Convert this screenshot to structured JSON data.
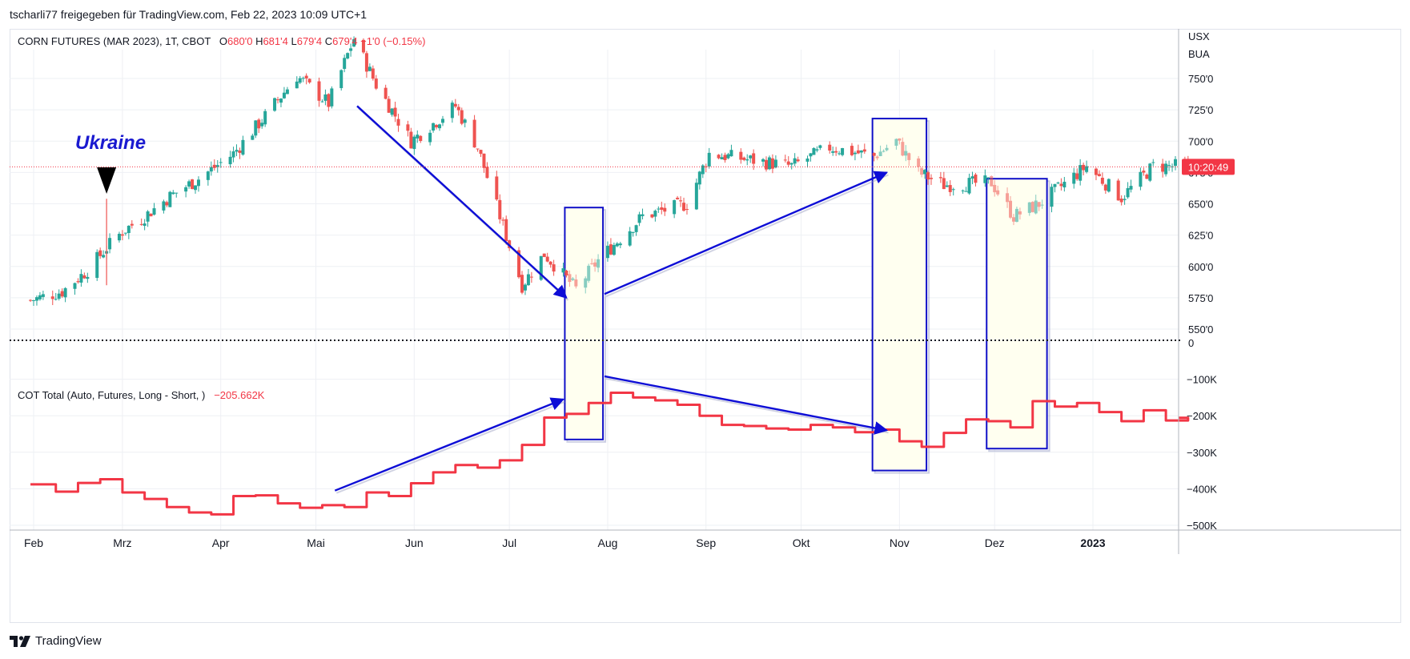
{
  "header": {
    "publisher_line": "tscharli77 freigegeben für TradingView.com, Feb 22, 2023 10:09 UTC+1"
  },
  "main_legend": {
    "symbol": "CORN FUTURES (MAR 2023), 1T, CBOT",
    "o_label": "O",
    "o_value": "680'0",
    "h_label": "H",
    "h_value": "681'4",
    "l_label": "L",
    "l_value": "679'4",
    "c_label": "C",
    "c_value": "679'4",
    "change": "−1'0 (−0.15%)"
  },
  "cot_legend": {
    "name": "COT Total (Auto, Futures, Long - Short, )",
    "value": "−205.662K"
  },
  "price_axis": {
    "currency": "USX",
    "unit": "BUA",
    "last_price_time": "10:20:49",
    "ticks": [
      "750'0",
      "725'0",
      "700'0",
      "675'0",
      "650'0",
      "625'0",
      "600'0",
      "575'0",
      "550'0"
    ]
  },
  "cot_axis": {
    "ticks": [
      "0",
      "−100K",
      "−200K",
      "−300K",
      "−400K",
      "−500K"
    ]
  },
  "time_axis": [
    "Feb",
    "Mrz",
    "Apr",
    "Mai",
    "Jun",
    "Jul",
    "Aug",
    "Sep",
    "Okt",
    "Nov",
    "Dez",
    "2023"
  ],
  "annotation": {
    "ukraine_label": "Ukraine"
  },
  "footer": {
    "brand": "TradingView"
  },
  "colors": {
    "up": "#26a69a",
    "down": "#ef5350",
    "cot_line": "#f23645",
    "arrow": "#0d0dd6",
    "box_border": "#1010c8",
    "box_fill": "#fffff0"
  },
  "chart_data": [
    {
      "type": "candlestick",
      "title": "CORN FUTURES (MAR 2023), 1T, CBOT",
      "ylabel": "USX",
      "ylim": [
        545,
        790
      ],
      "x_labels": [
        "Feb",
        "Mrz",
        "Apr",
        "Mai",
        "Jun",
        "Jul",
        "Aug",
        "Sep",
        "Okt",
        "Nov",
        "Dez",
        "2023"
      ],
      "y_ticks": [
        550,
        575,
        600,
        625,
        650,
        675,
        700,
        725,
        750
      ],
      "close_path": [
        {
          "x": "2022-01-31",
          "y": 573
        },
        {
          "x": "2022-02-10",
          "y": 580
        },
        {
          "x": "2022-02-18",
          "y": 597
        },
        {
          "x": "2022-02-24",
          "y": 615
        },
        {
          "x": "2022-03-01",
          "y": 628
        },
        {
          "x": "2022-03-08",
          "y": 640
        },
        {
          "x": "2022-03-16",
          "y": 656
        },
        {
          "x": "2022-03-25",
          "y": 670
        },
        {
          "x": "2022-04-05",
          "y": 690
        },
        {
          "x": "2022-04-15",
          "y": 720
        },
        {
          "x": "2022-04-25",
          "y": 752
        },
        {
          "x": "2022-05-05",
          "y": 730
        },
        {
          "x": "2022-05-13",
          "y": 782
        },
        {
          "x": "2022-05-20",
          "y": 745
        },
        {
          "x": "2022-05-31",
          "y": 700
        },
        {
          "x": "2022-06-14",
          "y": 728
        },
        {
          "x": "2022-06-21",
          "y": 695
        },
        {
          "x": "2022-06-28",
          "y": 640
        },
        {
          "x": "2022-07-05",
          "y": 585
        },
        {
          "x": "2022-07-12",
          "y": 610
        },
        {
          "x": "2022-07-22",
          "y": 582
        },
        {
          "x": "2022-07-29",
          "y": 605
        },
        {
          "x": "2022-08-12",
          "y": 640
        },
        {
          "x": "2022-08-26",
          "y": 650
        },
        {
          "x": "2022-09-02",
          "y": 690
        },
        {
          "x": "2022-09-15",
          "y": 685
        },
        {
          "x": "2022-09-28",
          "y": 680
        },
        {
          "x": "2022-10-10",
          "y": 695
        },
        {
          "x": "2022-10-24",
          "y": 688
        },
        {
          "x": "2022-10-31",
          "y": 700
        },
        {
          "x": "2022-11-07",
          "y": 675
        },
        {
          "x": "2022-11-15",
          "y": 665
        },
        {
          "x": "2022-11-30",
          "y": 667
        },
        {
          "x": "2022-12-07",
          "y": 640
        },
        {
          "x": "2022-12-15",
          "y": 650
        },
        {
          "x": "2022-12-30",
          "y": 680
        },
        {
          "x": "2023-01-10",
          "y": 655
        },
        {
          "x": "2023-01-20",
          "y": 680
        },
        {
          "x": "2023-01-31",
          "y": 680
        }
      ],
      "last_price": 679.5,
      "annotations": [
        {
          "text": "Ukraine",
          "x": "2022-02-24"
        }
      ]
    },
    {
      "type": "line",
      "title": "COT Total (Auto, Futures, Long - Short, )",
      "ylim": [
        -510000,
        0
      ],
      "y_ticks": [
        0,
        -100000,
        -200000,
        -300000,
        -400000,
        -500000
      ],
      "series": [
        {
          "name": "COT Total (Auto, Futures, Long - Short, )",
          "x": [
            "2022-01-31",
            "2022-02-08",
            "2022-02-15",
            "2022-02-22",
            "2022-03-01",
            "2022-03-08",
            "2022-03-15",
            "2022-03-22",
            "2022-03-29",
            "2022-04-05",
            "2022-04-12",
            "2022-04-19",
            "2022-04-26",
            "2022-05-03",
            "2022-05-10",
            "2022-05-17",
            "2022-05-24",
            "2022-05-31",
            "2022-06-07",
            "2022-06-14",
            "2022-06-21",
            "2022-06-28",
            "2022-07-05",
            "2022-07-12",
            "2022-07-19",
            "2022-07-26",
            "2022-08-02",
            "2022-08-09",
            "2022-08-16",
            "2022-08-23",
            "2022-08-30",
            "2022-09-06",
            "2022-09-13",
            "2022-09-20",
            "2022-09-27",
            "2022-10-04",
            "2022-10-11",
            "2022-10-18",
            "2022-10-25",
            "2022-11-01",
            "2022-11-08",
            "2022-11-15",
            "2022-11-22",
            "2022-11-29",
            "2022-12-06",
            "2022-12-13",
            "2022-12-20",
            "2022-12-27",
            "2023-01-03",
            "2023-01-10",
            "2023-01-17",
            "2023-01-24",
            "2023-01-31"
          ],
          "values": [
            -388000,
            -408000,
            -384000,
            -374000,
            -410000,
            -428000,
            -450000,
            -465000,
            -470000,
            -420000,
            -418000,
            -440000,
            -452000,
            -445000,
            -450000,
            -410000,
            -420000,
            -385000,
            -355000,
            -335000,
            -342000,
            -322000,
            -280000,
            -205000,
            -195000,
            -165000,
            -137000,
            -150000,
            -158000,
            -170000,
            -200000,
            -225000,
            -228000,
            -235000,
            -238000,
            -225000,
            -232000,
            -245000,
            -238000,
            -270000,
            -285000,
            -247000,
            -210000,
            -215000,
            -232000,
            -160000,
            -175000,
            -165000,
            -190000,
            -215000,
            -185000,
            -213000,
            -205662
          ]
        }
      ]
    }
  ]
}
